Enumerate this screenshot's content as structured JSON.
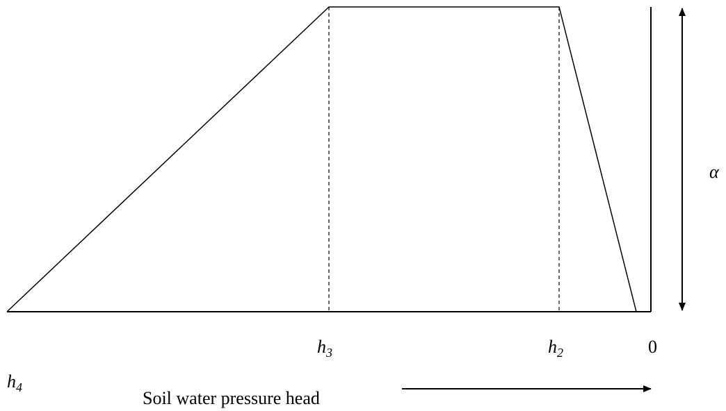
{
  "alpha": "α",
  "h3": {
    "text": "h",
    "sub": "3"
  },
  "h2": {
    "text": "h",
    "sub": "2"
  },
  "zero": "0",
  "h4": {
    "text": "h",
    "sub": "4"
  },
  "axis_label": "Soil water pressure head"
}
